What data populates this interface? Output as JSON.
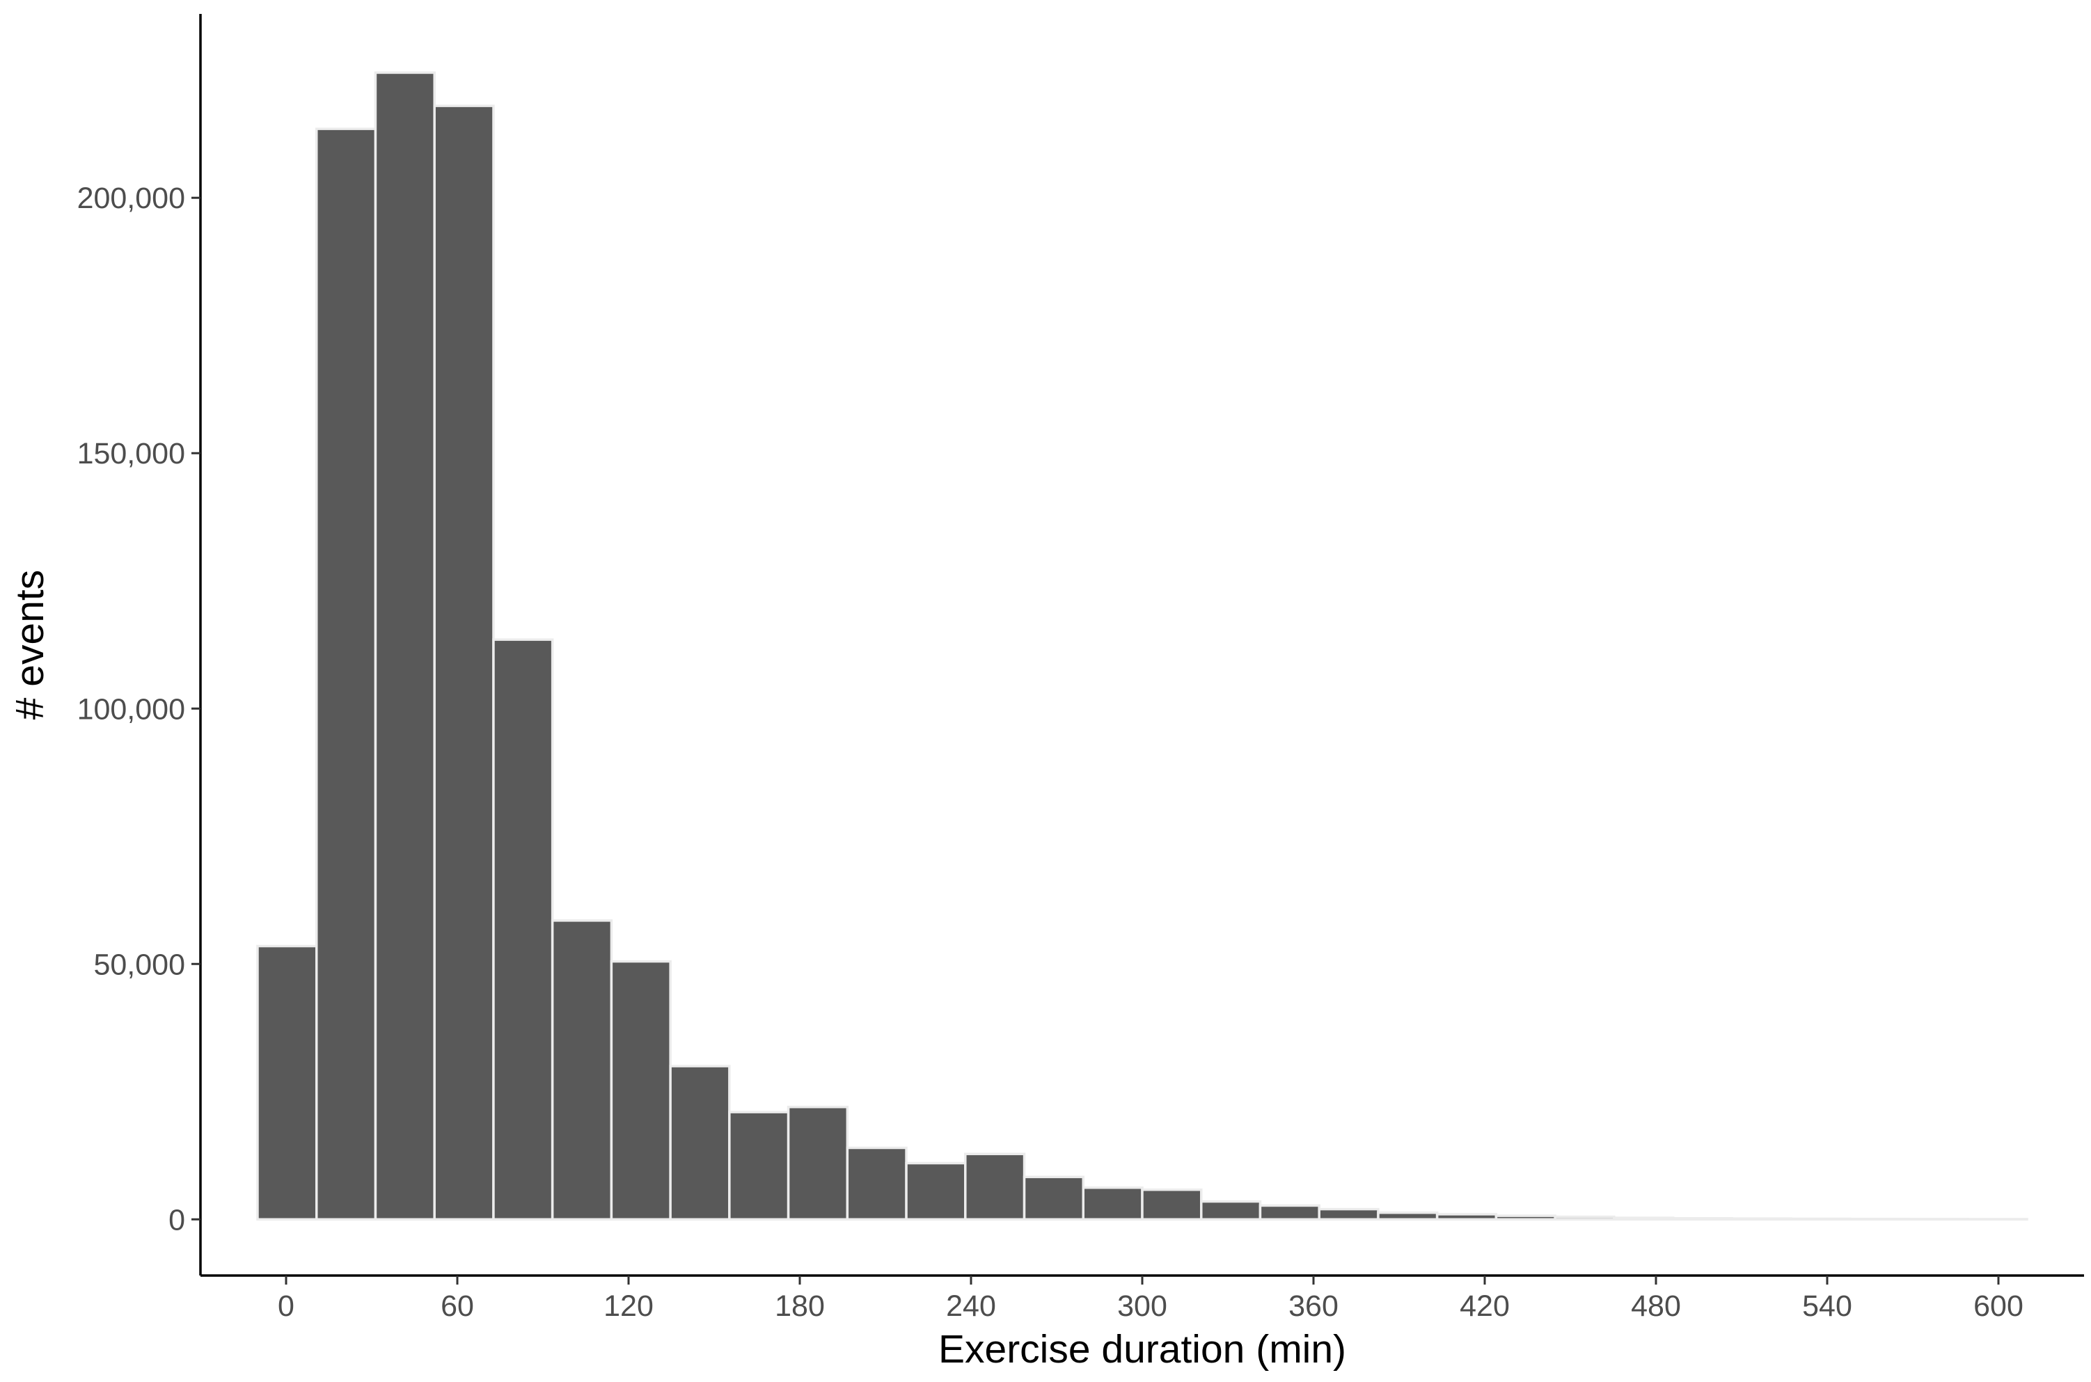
{
  "chart_data": {
    "type": "bar",
    "subtype": "histogram",
    "title": "",
    "xlabel": "Exercise duration (min)",
    "ylabel": "# events",
    "xlim": [
      -30,
      630
    ],
    "ylim": [
      -11000,
      236000
    ],
    "x_ticks": [
      0,
      60,
      120,
      180,
      240,
      300,
      360,
      420,
      480,
      540,
      600
    ],
    "x_tick_labels": [
      "0",
      "60",
      "120",
      "180",
      "240",
      "300",
      "360",
      "420",
      "480",
      "540",
      "600"
    ],
    "y_ticks": [
      0,
      50000,
      100000,
      150000,
      200000
    ],
    "y_tick_labels": [
      "0",
      "50,000",
      "100,000",
      "150,000",
      "200,000"
    ],
    "bin_width": 20.67,
    "bins": [
      {
        "start": -10.0,
        "end": 10.67,
        "count": 53500
      },
      {
        "start": 10.67,
        "end": 31.33,
        "count": 213500
      },
      {
        "start": 31.33,
        "end": 52.0,
        "count": 224500
      },
      {
        "start": 52.0,
        "end": 72.67,
        "count": 218000
      },
      {
        "start": 72.67,
        "end": 93.33,
        "count": 113500
      },
      {
        "start": 93.33,
        "end": 114.0,
        "count": 58500
      },
      {
        "start": 114.0,
        "end": 134.67,
        "count": 50500
      },
      {
        "start": 134.67,
        "end": 155.33,
        "count": 30000
      },
      {
        "start": 155.33,
        "end": 176.0,
        "count": 21000
      },
      {
        "start": 176.0,
        "end": 196.67,
        "count": 22000
      },
      {
        "start": 196.67,
        "end": 217.33,
        "count": 14000
      },
      {
        "start": 217.33,
        "end": 238.0,
        "count": 11000
      },
      {
        "start": 238.0,
        "end": 258.67,
        "count": 12800
      },
      {
        "start": 258.67,
        "end": 279.33,
        "count": 8300
      },
      {
        "start": 279.33,
        "end": 300.0,
        "count": 6200
      },
      {
        "start": 300.0,
        "end": 320.67,
        "count": 5800
      },
      {
        "start": 320.67,
        "end": 341.33,
        "count": 3500
      },
      {
        "start": 341.33,
        "end": 362.0,
        "count": 2700
      },
      {
        "start": 362.0,
        "end": 382.67,
        "count": 2000
      },
      {
        "start": 382.67,
        "end": 403.33,
        "count": 1300
      },
      {
        "start": 403.33,
        "end": 424.0,
        "count": 1000
      },
      {
        "start": 424.0,
        "end": 444.67,
        "count": 700
      },
      {
        "start": 444.67,
        "end": 465.33,
        "count": 500
      },
      {
        "start": 465.33,
        "end": 486.0,
        "count": 300
      },
      {
        "start": 486.0,
        "end": 506.67,
        "count": 200
      },
      {
        "start": 506.67,
        "end": 527.33,
        "count": 150
      },
      {
        "start": 527.33,
        "end": 548.0,
        "count": 100
      },
      {
        "start": 548.0,
        "end": 568.67,
        "count": 80
      },
      {
        "start": 568.67,
        "end": 589.33,
        "count": 60
      },
      {
        "start": 589.33,
        "end": 610.0,
        "count": 40
      }
    ],
    "colors": {
      "bar_fill": "#595959",
      "bar_outline": "#ececec",
      "axis": "#000000",
      "tick_text": "#4d4d4d"
    },
    "grid": false,
    "legend": "none"
  }
}
